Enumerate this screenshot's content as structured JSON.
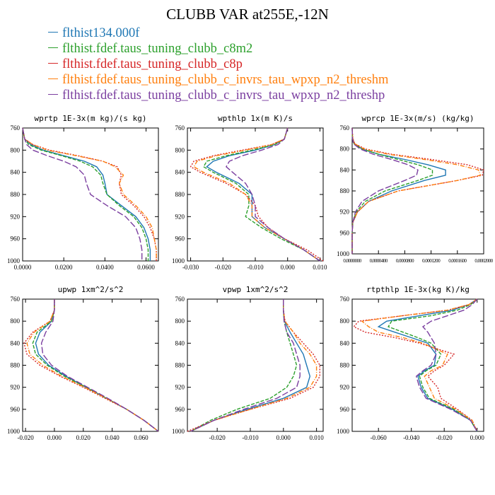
{
  "page": {
    "title": "CLUBB VAR at255E,-12N"
  },
  "legend": [
    {
      "label": "flthist134.000f",
      "color": "#1f77b4"
    },
    {
      "label": "flthist.fdef.taus_tuning_clubb_c8m2",
      "color": "#2ca02c"
    },
    {
      "label": "flthist.fdef.taus_tuning_clubb_c8p",
      "color": "#d62728"
    },
    {
      "label": "flthist.fdef.taus_tuning_clubb_c_invrs_tau_wpxp_n2_threshm",
      "color": "#ff7f0e"
    },
    {
      "label": "flthist.fdef.taus_tuning_clubb_c_invrs_tau_wpxp_n2_threshp",
      "color": "#7b3fa0"
    }
  ],
  "chart_data": [
    {
      "type": "line",
      "title": "wprtp  1E-3x(m kg)/(s kg)",
      "xlim": [
        0,
        0.066
      ],
      "ylim": [
        760,
        1000
      ],
      "xticks": [
        "0.0000",
        "0.0200",
        "0.0400",
        "0.0600"
      ],
      "xtick_values": [
        0,
        0.02,
        0.04,
        0.06
      ],
      "yticks": [
        "760",
        "800",
        "840",
        "880",
        "920",
        "960",
        "1000"
      ],
      "y": [
        760,
        780,
        790,
        800,
        810,
        820,
        830,
        845,
        860,
        880,
        900,
        920,
        940,
        960,
        980,
        1000
      ],
      "series": [
        {
          "values": [
            0.0,
            0.001,
            0.004,
            0.01,
            0.02,
            0.03,
            0.036,
            0.039,
            0.04,
            0.041,
            0.048,
            0.055,
            0.059,
            0.061,
            0.062,
            0.062
          ],
          "style": "solid"
        },
        {
          "values": [
            0.0,
            0.001,
            0.003,
            0.009,
            0.019,
            0.028,
            0.034,
            0.038,
            0.039,
            0.041,
            0.047,
            0.054,
            0.058,
            0.06,
            0.061,
            0.061
          ],
          "style": "dashed"
        },
        {
          "values": [
            0.0,
            0.001,
            0.005,
            0.013,
            0.027,
            0.039,
            0.046,
            0.048,
            0.047,
            0.048,
            0.054,
            0.059,
            0.062,
            0.064,
            0.065,
            0.065
          ],
          "style": "dotted"
        },
        {
          "values": [
            0.0,
            0.001,
            0.005,
            0.012,
            0.026,
            0.039,
            0.045,
            0.049,
            0.047,
            0.049,
            0.055,
            0.06,
            0.063,
            0.064,
            0.065,
            0.065
          ],
          "style": "dashdot"
        },
        {
          "values": [
            0.0,
            0.001,
            0.002,
            0.005,
            0.012,
            0.02,
            0.026,
            0.03,
            0.031,
            0.033,
            0.041,
            0.05,
            0.055,
            0.057,
            0.058,
            0.058
          ],
          "style": "longdash"
        }
      ]
    },
    {
      "type": "line",
      "title": "wpthlp  1x(m K)/s",
      "xlim": [
        -0.031,
        0.011
      ],
      "ylim": [
        760,
        1000
      ],
      "xticks": [
        "-0.030",
        "-0.020",
        "-0.010",
        "0.000",
        "0.010"
      ],
      "xtick_values": [
        -0.03,
        -0.02,
        -0.01,
        0,
        0.01
      ],
      "yticks": [
        "760",
        "800",
        "840",
        "880",
        "920",
        "960",
        "1000"
      ],
      "y": [
        760,
        780,
        790,
        800,
        810,
        820,
        830,
        840,
        860,
        880,
        900,
        920,
        940,
        960,
        980,
        1000
      ],
      "series": [
        {
          "values": [
            0.0,
            -0.001,
            -0.004,
            -0.01,
            -0.018,
            -0.023,
            -0.025,
            -0.022,
            -0.015,
            -0.011,
            -0.011,
            -0.011,
            -0.007,
            -0.001,
            0.005,
            0.01
          ],
          "style": "solid"
        },
        {
          "values": [
            0.0,
            -0.001,
            -0.004,
            -0.011,
            -0.019,
            -0.025,
            -0.026,
            -0.023,
            -0.016,
            -0.012,
            -0.012,
            -0.013,
            -0.008,
            -0.002,
            0.005,
            0.01
          ],
          "style": "dashed"
        },
        {
          "values": [
            0.0,
            -0.001,
            -0.005,
            -0.014,
            -0.023,
            -0.029,
            -0.03,
            -0.027,
            -0.019,
            -0.013,
            -0.01,
            -0.009,
            -0.006,
            -0.001,
            0.006,
            0.011
          ],
          "style": "dotted"
        },
        {
          "values": [
            0.0,
            -0.001,
            -0.005,
            -0.013,
            -0.022,
            -0.028,
            -0.029,
            -0.026,
            -0.018,
            -0.013,
            -0.011,
            -0.011,
            -0.007,
            -0.001,
            0.005,
            0.01
          ],
          "style": "dashdot"
        },
        {
          "values": [
            0.0,
            -0.001,
            -0.003,
            -0.008,
            -0.014,
            -0.018,
            -0.019,
            -0.017,
            -0.013,
            -0.011,
            -0.01,
            -0.01,
            -0.006,
            -0.001,
            0.005,
            0.01
          ],
          "style": "longdash"
        }
      ]
    },
    {
      "type": "line",
      "title": "wprcp  1E-3x(m/s) (kg/kg)",
      "xlim": [
        0,
        0.0002
      ],
      "ylim": [
        760,
        1000
      ],
      "xticks": [
        "0.0000000",
        "0.0000400",
        "0.0000800",
        "0.0001200",
        "0.0001600",
        "0.0002000"
      ],
      "xtick_values": [
        0,
        4e-05,
        8e-05,
        0.00012,
        0.00016,
        0.0002
      ],
      "yticks": [
        "760",
        "800",
        "840",
        "880",
        "920",
        "960",
        "1000"
      ],
      "y": [
        760,
        780,
        790,
        800,
        810,
        820,
        830,
        840,
        850,
        860,
        880,
        900,
        920,
        940,
        960,
        980,
        1000
      ],
      "series": [
        {
          "values": [
            0,
            5e-07,
            3e-06,
            1.5e-05,
            4e-05,
            8e-05,
            0.000115,
            0.000142,
            0.000142,
            0.00011,
            6e-05,
            2.5e-05,
            8e-06,
            1e-06,
            0,
            0,
            0
          ],
          "style": "solid"
        },
        {
          "values": [
            0,
            5e-07,
            3e-06,
            1.5e-05,
            4e-05,
            7e-05,
            0.0001,
            0.000122,
            0.000122,
            0.0001,
            5e-05,
            2e-05,
            6e-06,
            1e-06,
            0,
            0,
            0
          ],
          "style": "dashed"
        },
        {
          "values": [
            0,
            1e-06,
            4e-06,
            2e-05,
            6e-05,
            0.00012,
            0.000175,
            0.0002,
            0.000198,
            0.00016,
            7e-05,
            2.5e-05,
            8e-06,
            1e-06,
            0,
            0,
            0
          ],
          "style": "dotted"
        },
        {
          "values": [
            0,
            1e-06,
            4e-06,
            1.8e-05,
            5.5e-05,
            0.00011,
            0.00016,
            0.000192,
            0.000195,
            0.00016,
            7e-05,
            2.5e-05,
            8e-06,
            1e-06,
            0,
            0,
            0
          ],
          "style": "dashdot"
        },
        {
          "values": [
            0,
            5e-07,
            2e-06,
            1.2e-05,
            3.2e-05,
            6e-05,
            8.5e-05,
            0.0001,
            9.8e-05,
            8e-05,
            4e-05,
            1.5e-05,
            5e-06,
            1e-06,
            0,
            0,
            0
          ],
          "style": "longdash"
        }
      ]
    },
    {
      "type": "line",
      "title": "upwp  1xm^2/s^2",
      "xlim": [
        -0.022,
        0.072
      ],
      "ylim": [
        760,
        1000
      ],
      "xticks": [
        "-0.020",
        "0.000",
        "0.020",
        "0.040",
        "0.060"
      ],
      "xtick_values": [
        -0.02,
        0,
        0.02,
        0.04,
        0.06
      ],
      "yticks": [
        "760",
        "800",
        "840",
        "880",
        "920",
        "960",
        "1000"
      ],
      "y": [
        760,
        780,
        800,
        820,
        840,
        860,
        880,
        900,
        920,
        940,
        960,
        980,
        1000
      ],
      "series": [
        {
          "values": [
            0,
            0,
            -0.002,
            -0.01,
            -0.013,
            -0.011,
            -0.004,
            0.008,
            0.022,
            0.036,
            0.05,
            0.062,
            0.072
          ],
          "style": "solid"
        },
        {
          "values": [
            0,
            0,
            -0.002,
            -0.012,
            -0.015,
            -0.013,
            -0.005,
            0.007,
            0.022,
            0.036,
            0.05,
            0.062,
            0.072
          ],
          "style": "dashed"
        },
        {
          "values": [
            0,
            0,
            -0.003,
            -0.015,
            -0.021,
            -0.019,
            -0.01,
            0.004,
            0.02,
            0.035,
            0.05,
            0.062,
            0.072
          ],
          "style": "dotted"
        },
        {
          "values": [
            0,
            0,
            -0.003,
            -0.014,
            -0.019,
            -0.017,
            -0.008,
            0.005,
            0.021,
            0.036,
            0.05,
            0.062,
            0.072
          ],
          "style": "dashdot"
        },
        {
          "values": [
            0,
            0,
            -0.001,
            -0.006,
            -0.009,
            -0.008,
            -0.002,
            0.009,
            0.023,
            0.037,
            0.05,
            0.062,
            0.072
          ],
          "style": "longdash"
        }
      ]
    },
    {
      "type": "line",
      "title": "vpwp  1xm^2/s^2",
      "xlim": [
        -0.029,
        0.012
      ],
      "ylim": [
        760,
        1000
      ],
      "xticks": [
        "-0.020",
        "-0.010",
        "0.000",
        "0.010"
      ],
      "xtick_values": [
        -0.02,
        -0.01,
        0,
        0.01
      ],
      "yticks": [
        "760",
        "800",
        "840",
        "880",
        "920",
        "960",
        "1000"
      ],
      "y": [
        760,
        780,
        800,
        820,
        840,
        860,
        880,
        900,
        920,
        940,
        960,
        980,
        1000
      ],
      "series": [
        {
          "values": [
            0,
            0,
            0.0003,
            0.002,
            0.004,
            0.006,
            0.007,
            0.008,
            0.007,
            0.0,
            -0.011,
            -0.021,
            -0.028
          ],
          "style": "solid"
        },
        {
          "values": [
            0,
            0,
            0.0002,
            0.001,
            0.002,
            0.003,
            0.004,
            0.003,
            0.001,
            -0.004,
            -0.014,
            -0.022,
            -0.028
          ],
          "style": "dashed"
        },
        {
          "values": [
            0,
            0,
            0.0005,
            0.003,
            0.006,
            0.009,
            0.011,
            0.011,
            0.009,
            0.002,
            -0.01,
            -0.021,
            -0.029
          ],
          "style": "dotted"
        },
        {
          "values": [
            0,
            0,
            0.0004,
            0.003,
            0.005,
            0.008,
            0.01,
            0.01,
            0.008,
            0.001,
            -0.01,
            -0.021,
            -0.028
          ],
          "style": "dashdot"
        },
        {
          "values": [
            0,
            0,
            0.0002,
            0.001,
            0.003,
            0.004,
            0.005,
            0.005,
            0.004,
            -0.002,
            -0.012,
            -0.021,
            -0.028
          ],
          "style": "longdash"
        }
      ]
    },
    {
      "type": "line",
      "title": "rtpthlp  1E-3x(kg K)/kg",
      "xlim": [
        -0.076,
        0.004
      ],
      "ylim": [
        760,
        1000
      ],
      "xticks": [
        "-0.060",
        "-0.040",
        "-0.020",
        "0.000"
      ],
      "xtick_values": [
        -0.06,
        -0.04,
        -0.02,
        0
      ],
      "yticks": [
        "760",
        "800",
        "840",
        "880",
        "920",
        "960",
        "1000"
      ],
      "y": [
        760,
        770,
        780,
        790,
        800,
        810,
        820,
        830,
        840,
        860,
        880,
        890,
        900,
        920,
        940,
        960,
        980,
        1000
      ],
      "series": [
        {
          "values": [
            0,
            -0.005,
            -0.015,
            -0.035,
            -0.055,
            -0.06,
            -0.05,
            -0.04,
            -0.03,
            -0.025,
            -0.026,
            -0.032,
            -0.036,
            -0.034,
            -0.03,
            -0.015,
            -0.004,
            0
          ],
          "style": "solid"
        },
        {
          "values": [
            0,
            -0.004,
            -0.012,
            -0.028,
            -0.052,
            -0.054,
            -0.045,
            -0.036,
            -0.028,
            -0.022,
            -0.025,
            -0.031,
            -0.035,
            -0.033,
            -0.029,
            -0.014,
            -0.004,
            0
          ],
          "style": "dashed"
        },
        {
          "values": [
            0,
            -0.005,
            -0.018,
            -0.045,
            -0.072,
            -0.075,
            -0.068,
            -0.05,
            -0.035,
            -0.014,
            -0.02,
            -0.026,
            -0.03,
            -0.024,
            -0.022,
            -0.012,
            -0.003,
            0
          ],
          "style": "dotted"
        },
        {
          "values": [
            0,
            -0.005,
            -0.018,
            -0.045,
            -0.07,
            -0.066,
            -0.06,
            -0.045,
            -0.033,
            -0.018,
            -0.021,
            -0.028,
            -0.032,
            -0.029,
            -0.026,
            -0.013,
            -0.003,
            0
          ],
          "style": "dashdot"
        },
        {
          "values": [
            0,
            -0.003,
            -0.008,
            -0.018,
            -0.028,
            -0.033,
            -0.03,
            -0.028,
            -0.026,
            -0.025,
            -0.028,
            -0.033,
            -0.037,
            -0.035,
            -0.031,
            -0.016,
            -0.004,
            0
          ],
          "style": "longdash"
        }
      ]
    }
  ]
}
